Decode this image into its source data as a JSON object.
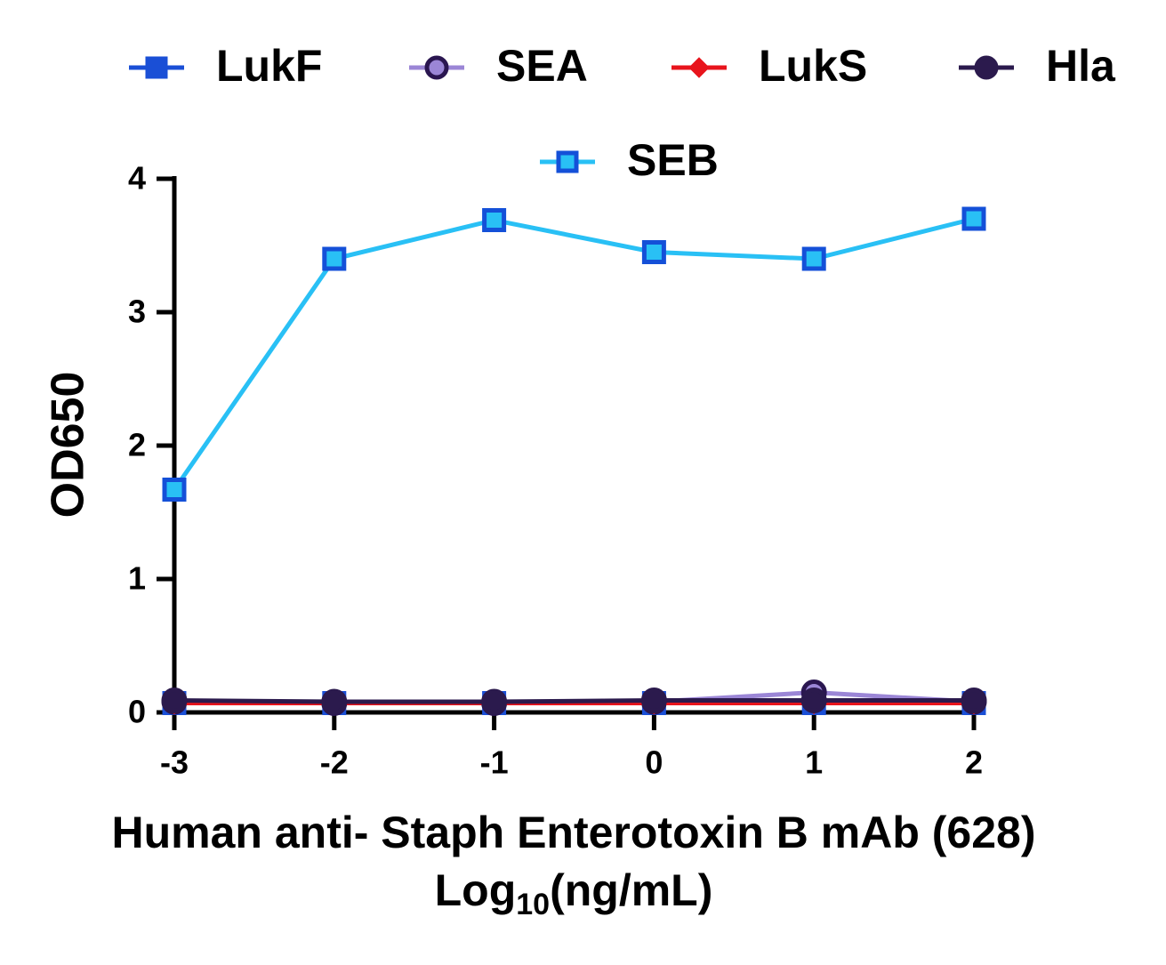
{
  "chart_data": {
    "type": "line",
    "x_label": [
      "Human anti- Staph Enterotoxin B mAb (628)",
      "Log",
      "10",
      "(ng/mL)"
    ],
    "y_label": "OD650",
    "x": [
      -3,
      -2,
      -1,
      0,
      1,
      2
    ],
    "xlim": [
      -3,
      2
    ],
    "xticks": [
      -3,
      -2,
      -1,
      0,
      1,
      2
    ],
    "ylim": [
      0,
      4
    ],
    "yticks": [
      0,
      1,
      2,
      3,
      4
    ],
    "legend": "top",
    "series": [
      {
        "name": "LukF",
        "color": "#1a4fd6",
        "edge_color": "#1a4fd6",
        "marker": "square",
        "values": [
          0.07,
          0.07,
          0.07,
          0.07,
          0.07,
          0.07
        ]
      },
      {
        "name": "SEA",
        "color": "#9b86d6",
        "edge_color": "#2a1650",
        "marker": "circle",
        "values": [
          0.08,
          0.07,
          0.07,
          0.08,
          0.15,
          0.08
        ]
      },
      {
        "name": "LukS",
        "color": "#e8141c",
        "edge_color": "#e8141c",
        "marker": "diamond",
        "values": [
          0.07,
          0.07,
          0.07,
          0.07,
          0.07,
          0.07
        ]
      },
      {
        "name": "Hla",
        "color": "#2b1a4d",
        "edge_color": "#2b1a4d",
        "marker": "circle",
        "values": [
          0.09,
          0.08,
          0.08,
          0.09,
          0.09,
          0.09
        ]
      },
      {
        "name": "SEB",
        "color": "#29c0f5",
        "edge_color": "#1450d8",
        "marker": "square",
        "values": [
          1.67,
          3.4,
          3.69,
          3.45,
          3.4,
          3.7
        ]
      }
    ]
  }
}
